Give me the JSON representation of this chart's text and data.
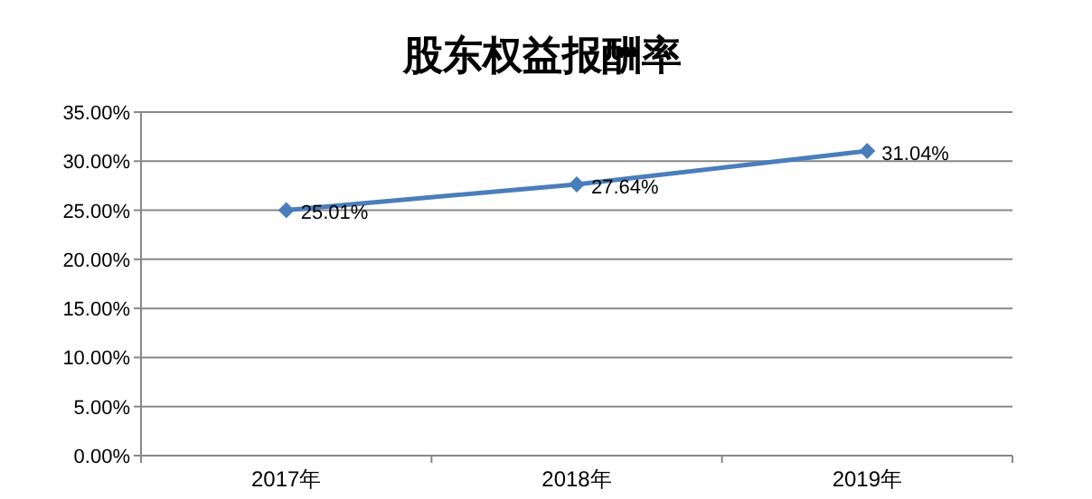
{
  "chart_data": {
    "type": "line",
    "title": "股东权益报酬率",
    "categories": [
      "2017年",
      "2018年",
      "2019年"
    ],
    "series": [
      {
        "color": "#4a7ebb",
        "values": [
          25.01,
          27.64,
          31.04
        ],
        "value_labels": [
          "25.01%",
          "27.64%",
          "31.04%"
        ]
      }
    ],
    "ylim": [
      0,
      35
    ],
    "yticks": [
      {
        "value": 0,
        "label": "0.00%"
      },
      {
        "value": 5,
        "label": "5.00%"
      },
      {
        "value": 10,
        "label": "10.00%"
      },
      {
        "value": 15,
        "label": "15.00%"
      },
      {
        "value": 20,
        "label": "20.00%"
      },
      {
        "value": 25,
        "label": "25.00%"
      },
      {
        "value": 30,
        "label": "30.00%"
      },
      {
        "value": 35,
        "label": "35.00%"
      }
    ],
    "grid": "y",
    "marker": "diamond",
    "line_style": "solid"
  }
}
